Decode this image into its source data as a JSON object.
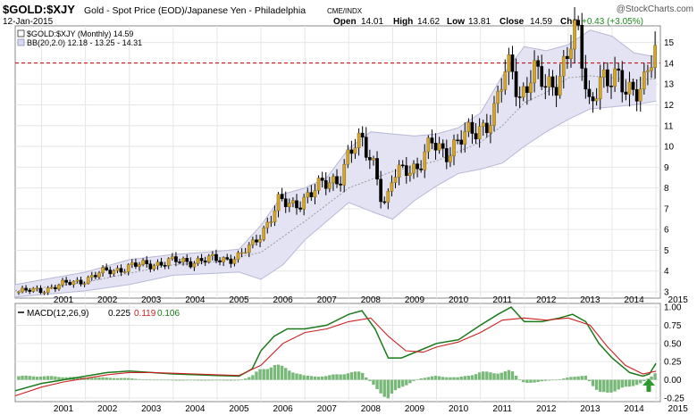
{
  "header": {
    "symbol": "$GOLD:$XJY",
    "description": "Gold - Spot Price (EOD)/Japanese Yen - Philadelphia",
    "exchange": "CME/INDX",
    "watermark": "@StockCharts.com",
    "date": "12-Jan-2015",
    "quote": {
      "open_label": "Open",
      "open": "14.01",
      "high_label": "High",
      "high": "14.62",
      "low_label": "Low",
      "low": "13.81",
      "close_label": "Close",
      "close": "14.59",
      "chg_label": "Chg",
      "chg": "+0.43 (+3.05%)"
    }
  },
  "legend": {
    "price_label": "$GOLD:$XJY (Monthly) 14.59",
    "bb_label": "BB(20,2.0) 12.18 - 13.25 - 14.31"
  },
  "macd_legend": {
    "label": "MACD(12,26,9)",
    "macd": "0.225",
    "signal": "0.119",
    "hist": "0.106"
  },
  "colors": {
    "up_candle": "#d4a52a",
    "down_candle": "#000000",
    "band_fill": "#e3e3f3",
    "band_line": "#b8b8d8",
    "mid_line": "#9a9a9a",
    "ref_line": "#c00000",
    "macd_line": "#1a7a1a",
    "signal_line": "#cc2020",
    "histogram": "#78b878",
    "arrow": "#2e9a2e",
    "chg_positive": "#1a8a1a"
  },
  "chart_data": [
    {
      "type": "candlestick",
      "title": "$GOLD:$XJY (Monthly)",
      "x_range": [
        2000.4,
        2015.1
      ],
      "ylim": [
        2.7,
        15.8
      ],
      "y_ticks": [
        3,
        4,
        5,
        6,
        7,
        8,
        9,
        10,
        11,
        12,
        13,
        14,
        15
      ],
      "x_ticks": [
        "2001",
        "2002",
        "2003",
        "2004",
        "2005",
        "2006",
        "2007",
        "2008",
        "2009",
        "2010",
        "2011",
        "2012",
        "2013",
        "2014",
        "2015"
      ],
      "grid": true,
      "reference_line": 14.01,
      "close_anchors": [
        [
          2000.5,
          3.0
        ],
        [
          2001.0,
          3.1
        ],
        [
          2001.5,
          3.35
        ],
        [
          2002.0,
          3.6
        ],
        [
          2002.5,
          4.0
        ],
        [
          2003.0,
          4.2
        ],
        [
          2003.5,
          4.35
        ],
        [
          2004.0,
          4.45
        ],
        [
          2004.5,
          4.5
        ],
        [
          2005.0,
          4.55
        ],
        [
          2005.5,
          4.7
        ],
        [
          2005.8,
          5.2
        ],
        [
          2006.1,
          6.2
        ],
        [
          2006.4,
          7.3
        ],
        [
          2006.7,
          7.1
        ],
        [
          2007.0,
          7.6
        ],
        [
          2007.5,
          8.2
        ],
        [
          2007.8,
          8.6
        ],
        [
          2008.0,
          9.6
        ],
        [
          2008.3,
          10.2
        ],
        [
          2008.6,
          9.2
        ],
        [
          2008.75,
          7.5
        ],
        [
          2008.85,
          7.0
        ],
        [
          2009.0,
          8.4
        ],
        [
          2009.3,
          9.1
        ],
        [
          2009.6,
          9.0
        ],
        [
          2009.9,
          10.1
        ],
        [
          2010.2,
          9.8
        ],
        [
          2010.5,
          10.2
        ],
        [
          2010.8,
          10.6
        ],
        [
          2011.0,
          11.0
        ],
        [
          2011.3,
          11.5
        ],
        [
          2011.5,
          13.0
        ],
        [
          2011.7,
          14.0
        ],
        [
          2011.9,
          12.5
        ],
        [
          2012.2,
          13.5
        ],
        [
          2012.5,
          12.8
        ],
        [
          2012.8,
          13.5
        ],
        [
          2013.0,
          14.5
        ],
        [
          2013.2,
          15.5
        ],
        [
          2013.4,
          13.0
        ],
        [
          2013.5,
          12.0
        ],
        [
          2013.7,
          13.5
        ],
        [
          2013.9,
          12.8
        ],
        [
          2014.1,
          13.2
        ],
        [
          2014.4,
          13.0
        ],
        [
          2014.7,
          12.6
        ],
        [
          2014.9,
          14.0
        ],
        [
          2015.0,
          14.59
        ]
      ],
      "bollinger": {
        "upper": [
          [
            2000.4,
            3.35
          ],
          [
            2002.0,
            3.95
          ],
          [
            2003.0,
            4.55
          ],
          [
            2004.0,
            4.8
          ],
          [
            2005.0,
            4.95
          ],
          [
            2005.5,
            5.05
          ],
          [
            2006.0,
            6.2
          ],
          [
            2006.5,
            7.7
          ],
          [
            2007.0,
            8.0
          ],
          [
            2007.5,
            8.5
          ],
          [
            2008.0,
            9.9
          ],
          [
            2008.5,
            10.7
          ],
          [
            2009.0,
            10.6
          ],
          [
            2009.5,
            10.5
          ],
          [
            2010.0,
            10.6
          ],
          [
            2010.5,
            10.9
          ],
          [
            2011.0,
            11.6
          ],
          [
            2011.5,
            13.4
          ],
          [
            2012.0,
            14.8
          ],
          [
            2012.5,
            14.6
          ],
          [
            2013.0,
            14.9
          ],
          [
            2013.5,
            15.6
          ],
          [
            2014.0,
            15.3
          ],
          [
            2014.5,
            14.5
          ],
          [
            2015.0,
            14.31
          ]
        ],
        "middle": [
          [
            2000.4,
            3.05
          ],
          [
            2002.0,
            3.45
          ],
          [
            2003.0,
            3.9
          ],
          [
            2004.0,
            4.3
          ],
          [
            2005.0,
            4.45
          ],
          [
            2006.0,
            4.9
          ],
          [
            2007.0,
            6.4
          ],
          [
            2008.0,
            8.0
          ],
          [
            2009.0,
            8.8
          ],
          [
            2010.0,
            9.3
          ],
          [
            2011.0,
            10.2
          ],
          [
            2011.5,
            11.0
          ],
          [
            2012.0,
            12.1
          ],
          [
            2012.5,
            12.6
          ],
          [
            2013.0,
            13.3
          ],
          [
            2013.5,
            13.4
          ],
          [
            2014.0,
            13.3
          ],
          [
            2014.5,
            13.2
          ],
          [
            2015.0,
            13.25
          ]
        ],
        "lower": [
          [
            2000.4,
            2.75
          ],
          [
            2002.0,
            3.05
          ],
          [
            2003.0,
            3.35
          ],
          [
            2004.0,
            3.8
          ],
          [
            2005.0,
            3.9
          ],
          [
            2005.5,
            3.95
          ],
          [
            2006.0,
            3.6
          ],
          [
            2006.5,
            4.3
          ],
          [
            2007.0,
            5.5
          ],
          [
            2007.5,
            6.4
          ],
          [
            2008.0,
            7.3
          ],
          [
            2008.6,
            6.8
          ],
          [
            2009.0,
            6.5
          ],
          [
            2009.5,
            7.4
          ],
          [
            2010.0,
            8.1
          ],
          [
            2010.5,
            8.7
          ],
          [
            2011.0,
            8.9
          ],
          [
            2011.5,
            9.2
          ],
          [
            2012.0,
            10.0
          ],
          [
            2012.5,
            10.7
          ],
          [
            2013.0,
            11.3
          ],
          [
            2013.5,
            11.8
          ],
          [
            2014.0,
            11.9
          ],
          [
            2014.5,
            12.0
          ],
          [
            2015.0,
            12.18
          ]
        ]
      }
    },
    {
      "type": "line",
      "title": "MACD(12,26,9)",
      "ylim": [
        -0.3,
        1.05
      ],
      "y_ticks": [
        -0.25,
        0.0,
        0.25,
        0.5,
        0.75,
        1.0
      ],
      "y_tick_labels": [
        "-0.25",
        "0.00",
        "0.25",
        "0.50",
        "0.75",
        "1.00"
      ],
      "x_ticks": [
        "2001",
        "2002",
        "2003",
        "2004",
        "2005",
        "2006",
        "2007",
        "2008",
        "2009",
        "2010",
        "2011",
        "2012",
        "2013",
        "2014",
        "2015"
      ],
      "series": [
        {
          "name": "MACD",
          "points": [
            [
              2000.4,
              -0.15
            ],
            [
              2001.0,
              -0.05
            ],
            [
              2001.5,
              0.0
            ],
            [
              2002.0,
              0.05
            ],
            [
              2002.5,
              0.1
            ],
            [
              2003.0,
              0.12
            ],
            [
              2003.5,
              0.1
            ],
            [
              2004.0,
              0.08
            ],
            [
              2004.5,
              0.07
            ],
            [
              2005.0,
              0.06
            ],
            [
              2005.5,
              0.05
            ],
            [
              2005.8,
              0.15
            ],
            [
              2006.0,
              0.4
            ],
            [
              2006.3,
              0.6
            ],
            [
              2006.6,
              0.7
            ],
            [
              2007.0,
              0.7
            ],
            [
              2007.5,
              0.75
            ],
            [
              2008.0,
              0.9
            ],
            [
              2008.3,
              0.95
            ],
            [
              2008.6,
              0.7
            ],
            [
              2008.9,
              0.3
            ],
            [
              2009.2,
              0.3
            ],
            [
              2009.6,
              0.4
            ],
            [
              2010.0,
              0.5
            ],
            [
              2010.5,
              0.55
            ],
            [
              2011.0,
              0.75
            ],
            [
              2011.4,
              0.9
            ],
            [
              2011.7,
              1.0
            ],
            [
              2012.0,
              0.8
            ],
            [
              2012.4,
              0.8
            ],
            [
              2012.8,
              0.85
            ],
            [
              2013.1,
              0.9
            ],
            [
              2013.4,
              0.8
            ],
            [
              2013.7,
              0.5
            ],
            [
              2014.0,
              0.3
            ],
            [
              2014.4,
              0.1
            ],
            [
              2014.7,
              0.05
            ],
            [
              2014.85,
              0.08
            ],
            [
              2015.0,
              0.225
            ]
          ]
        },
        {
          "name": "Signal",
          "points": [
            [
              2000.4,
              -0.22
            ],
            [
              2001.0,
              -0.1
            ],
            [
              2001.5,
              -0.03
            ],
            [
              2002.0,
              0.02
            ],
            [
              2002.5,
              0.07
            ],
            [
              2003.0,
              0.1
            ],
            [
              2003.5,
              0.1
            ],
            [
              2004.0,
              0.09
            ],
            [
              2004.5,
              0.08
            ],
            [
              2005.0,
              0.07
            ],
            [
              2005.5,
              0.06
            ],
            [
              2006.0,
              0.2
            ],
            [
              2006.5,
              0.5
            ],
            [
              2007.0,
              0.65
            ],
            [
              2007.5,
              0.7
            ],
            [
              2008.0,
              0.8
            ],
            [
              2008.5,
              0.85
            ],
            [
              2008.9,
              0.6
            ],
            [
              2009.3,
              0.4
            ],
            [
              2009.7,
              0.38
            ],
            [
              2010.0,
              0.45
            ],
            [
              2010.5,
              0.52
            ],
            [
              2011.0,
              0.65
            ],
            [
              2011.5,
              0.82
            ],
            [
              2012.0,
              0.85
            ],
            [
              2012.5,
              0.82
            ],
            [
              2013.0,
              0.85
            ],
            [
              2013.5,
              0.75
            ],
            [
              2013.9,
              0.45
            ],
            [
              2014.3,
              0.2
            ],
            [
              2014.7,
              0.08
            ],
            [
              2015.0,
              0.119
            ]
          ]
        }
      ],
      "histogram": [
        [
          2000.5,
          0.05
        ],
        [
          2001.0,
          0.05
        ],
        [
          2001.5,
          0.04
        ],
        [
          2002.0,
          0.03
        ],
        [
          2002.5,
          0.03
        ],
        [
          2003.0,
          0.02
        ],
        [
          2003.5,
          0.0
        ],
        [
          2004.0,
          -0.01
        ],
        [
          2004.5,
          -0.01
        ],
        [
          2005.0,
          -0.01
        ],
        [
          2005.5,
          -0.01
        ],
        [
          2005.8,
          0.05
        ],
        [
          2006.0,
          0.15
        ],
        [
          2006.3,
          0.2
        ],
        [
          2006.6,
          0.15
        ],
        [
          2007.0,
          0.05
        ],
        [
          2007.5,
          0.05
        ],
        [
          2008.0,
          0.1
        ],
        [
          2008.3,
          0.1
        ],
        [
          2008.6,
          -0.1
        ],
        [
          2008.9,
          -0.25
        ],
        [
          2009.2,
          -0.1
        ],
        [
          2009.6,
          0.02
        ],
        [
          2010.0,
          0.05
        ],
        [
          2010.5,
          0.03
        ],
        [
          2011.0,
          0.1
        ],
        [
          2011.4,
          0.1
        ],
        [
          2011.7,
          0.12
        ],
        [
          2012.0,
          -0.05
        ],
        [
          2012.4,
          -0.02
        ],
        [
          2012.8,
          0.0
        ],
        [
          2013.1,
          0.05
        ],
        [
          2013.4,
          0.05
        ],
        [
          2013.7,
          -0.2
        ],
        [
          2014.0,
          -0.15
        ],
        [
          2014.4,
          -0.1
        ],
        [
          2014.7,
          -0.03
        ],
        [
          2014.85,
          0.03
        ],
        [
          2015.0,
          0.106
        ]
      ]
    }
  ]
}
